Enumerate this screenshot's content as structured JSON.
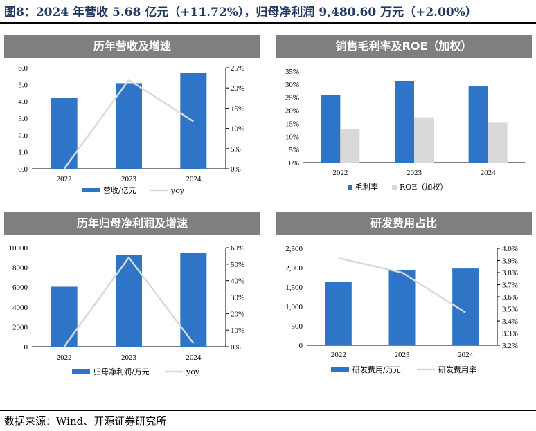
{
  "figure": {
    "title": "图8：2024 年营收 5.68 亿元（+11.72%），归母净利润 9,480.60 万元（+2.00%）",
    "source": "数据来源：Wind、开源证券研究所"
  },
  "colors": {
    "bar": "#2e75c8",
    "line": "#d9d9d9",
    "bar2": "#d9d9d9",
    "header": "#7f7f7f"
  },
  "chart_data": [
    {
      "type": "bar",
      "title": "历年营收及增速",
      "categories": [
        "2022",
        "2023",
        "2024"
      ],
      "series": [
        {
          "name": "营收/亿元",
          "kind": "bar",
          "axis": "left",
          "values": [
            4.2,
            5.08,
            5.68
          ]
        },
        {
          "name": "yoy",
          "kind": "line",
          "axis": "right",
          "values": [
            0.0,
            22.0,
            11.72
          ]
        }
      ],
      "ylim": [
        0,
        6
      ],
      "yticks": [
        "0.0",
        "1.0",
        "2.0",
        "3.0",
        "4.0",
        "5.0",
        "6.0"
      ],
      "y2lim": [
        0,
        25
      ],
      "y2ticks": [
        "0%",
        "5%",
        "10%",
        "15%",
        "20%",
        "25%"
      ],
      "legend": "bottom"
    },
    {
      "type": "bar",
      "title": "销售毛利率及ROE（加权）",
      "categories": [
        "2022",
        "2023",
        "2024"
      ],
      "series": [
        {
          "name": "毛利率",
          "kind": "bar",
          "axis": "left",
          "values": [
            25.8,
            31.3,
            29.3
          ]
        },
        {
          "name": "ROE（加权）",
          "kind": "bar",
          "axis": "left",
          "values": [
            13.0,
            17.3,
            15.3
          ]
        }
      ],
      "ylim": [
        0,
        35
      ],
      "yticks": [
        "0%",
        "5%",
        "10%",
        "15%",
        "20%",
        "25%",
        "30%",
        "35%"
      ],
      "legend": "bottom"
    },
    {
      "type": "bar",
      "title": "历年归母净利润及增速",
      "categories": [
        "2022",
        "2023",
        "2024"
      ],
      "series": [
        {
          "name": "归母净利润/万元",
          "kind": "bar",
          "axis": "left",
          "values": [
            6050,
            9295,
            9480.6
          ]
        },
        {
          "name": "yoy",
          "kind": "line",
          "axis": "right",
          "values": [
            0.0,
            54.0,
            2.0
          ]
        }
      ],
      "ylim": [
        0,
        10000
      ],
      "yticks": [
        "0",
        "2000",
        "4000",
        "6000",
        "8000",
        "10000"
      ],
      "y2lim": [
        0,
        60
      ],
      "y2ticks": [
        "0%",
        "10%",
        "20%",
        "30%",
        "40%",
        "50%",
        "60%"
      ],
      "legend": "bottom"
    },
    {
      "type": "bar",
      "title": "研发费用占比",
      "categories": [
        "2022",
        "2023",
        "2024"
      ],
      "series": [
        {
          "name": "研发费用/万元",
          "kind": "bar",
          "axis": "left",
          "values": [
            1640,
            1945,
            1980
          ]
        },
        {
          "name": "研发费用率",
          "kind": "line",
          "axis": "right",
          "values": [
            3.92,
            3.8,
            3.47
          ]
        }
      ],
      "ylim": [
        0,
        2500
      ],
      "yticks": [
        "0",
        "500",
        "1,000",
        "1,500",
        "2,000",
        "2,500"
      ],
      "y2lim": [
        3.2,
        4.0
      ],
      "y2ticks": [
        "3.2%",
        "3.3%",
        "3.4%",
        "3.5%",
        "3.6%",
        "3.7%",
        "3.8%",
        "3.9%",
        "4.0%"
      ],
      "legend": "bottom"
    }
  ]
}
